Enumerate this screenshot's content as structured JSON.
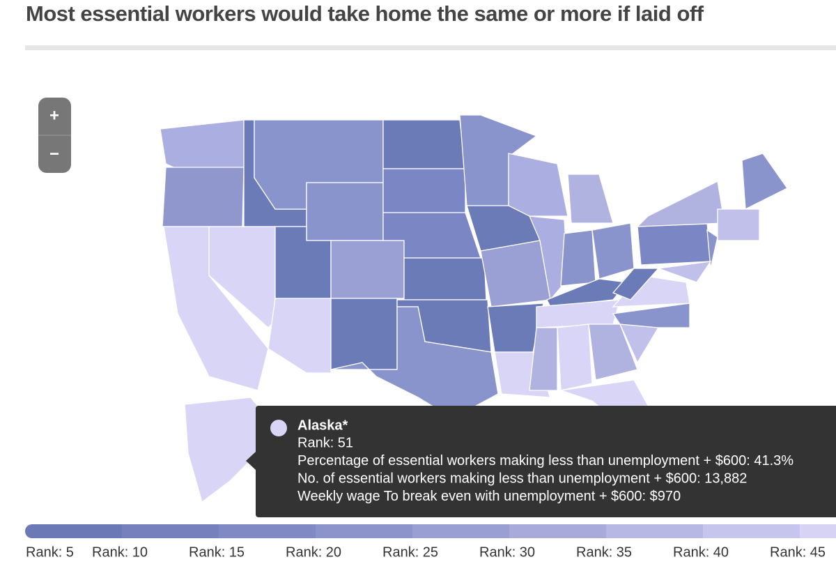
{
  "header": {
    "title": "Most essential workers would take home the same or more if laid off"
  },
  "zoom": {
    "in": "+",
    "out": "−"
  },
  "tooltip": {
    "name": "Alaska*",
    "lines": [
      "Rank: 51",
      "Percentage of essential workers making less than unemployment + $600: 41.3%",
      "No. of essential workers making less than unemployment + $600: 13,882",
      "Weekly wage To break even with unemployment + $600: $970"
    ]
  },
  "legend": {
    "labels": [
      "Rank: 5",
      "Rank: 10",
      "Rank: 15",
      "Rank: 20",
      "Rank: 25",
      "Rank: 30",
      "Rank: 35",
      "Rank: 40",
      "Rank: 45"
    ]
  }
}
